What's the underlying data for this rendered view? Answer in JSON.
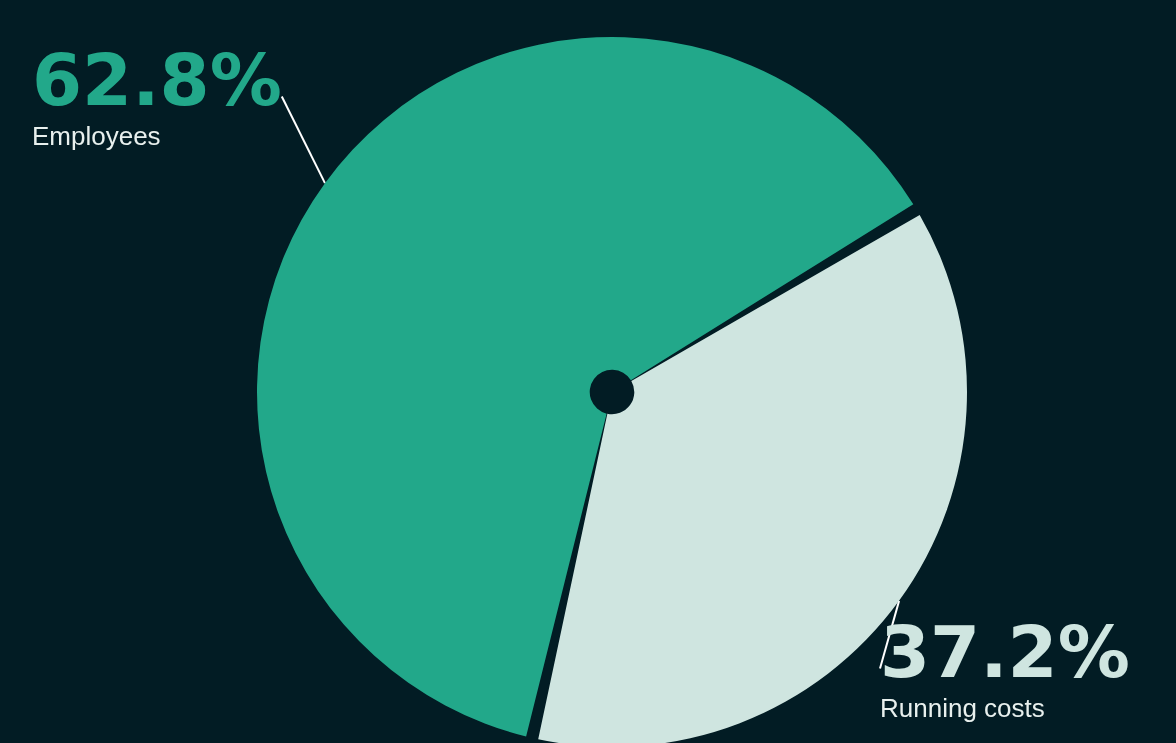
{
  "chart_data": {
    "type": "pie",
    "categories": [
      "Employees",
      "Running costs"
    ],
    "values": [
      62.8,
      37.2
    ],
    "colors": [
      "#22a88a",
      "#cfe5e0"
    ],
    "value_labels": [
      "62.8%",
      "37.2%"
    ]
  }
}
